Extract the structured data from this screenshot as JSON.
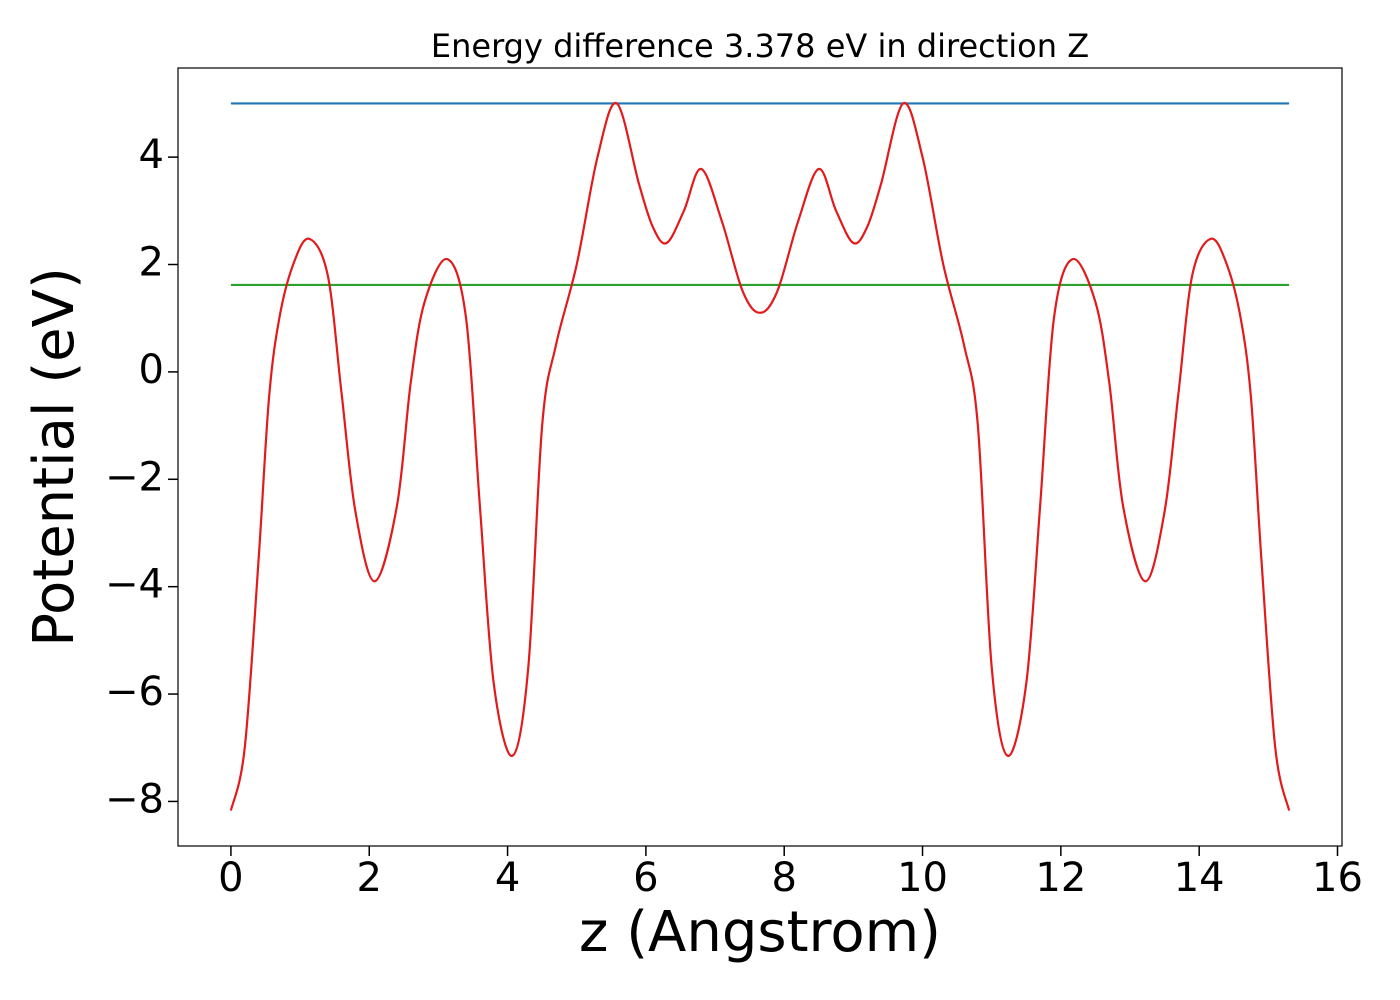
{
  "chart_data": {
    "type": "line",
    "title": "Energy difference 3.378 eV in direction Z",
    "xlabel": "z (Angstrom)",
    "ylabel": "Potential (eV)",
    "xlim": [
      -0.765,
      16.065
    ],
    "ylim": [
      -8.83,
      5.66
    ],
    "xticks": [
      0,
      2,
      4,
      6,
      8,
      10,
      12,
      14,
      16
    ],
    "yticks": [
      {
        "value": -8,
        "label": "−8"
      },
      {
        "value": -6,
        "label": "−6"
      },
      {
        "value": -4,
        "label": "−4"
      },
      {
        "value": -2,
        "label": "−2"
      },
      0,
      2,
      4
    ],
    "series": [
      {
        "color": "#1f77b4",
        "x": [
          0,
          15.3
        ],
        "values": [
          5.0,
          5.0
        ]
      },
      {
        "color": "#2ca02c",
        "x": [
          0,
          15.3
        ],
        "values": [
          1.62,
          1.62
        ]
      },
      {
        "color": "#e31a1c",
        "x": [
          0,
          0.2,
          0.4,
          0.55,
          0.7,
          0.9,
          1.13,
          1.4,
          1.6,
          1.8,
          2.08,
          2.4,
          2.6,
          2.8,
          3.13,
          3.4,
          3.6,
          3.8,
          4.07,
          4.3,
          4.5,
          4.7,
          5.0,
          5.3,
          5.58,
          5.9,
          6.1,
          6.3,
          6.55,
          6.8,
          7.1,
          7.4,
          7.65,
          7.9,
          8.2,
          8.5,
          8.75,
          9.0,
          9.2,
          9.4,
          9.72,
          10.0,
          10.3,
          10.6,
          10.8,
          11.0,
          11.23,
          11.5,
          11.7,
          11.9,
          12.17,
          12.5,
          12.7,
          12.9,
          13.22,
          13.5,
          13.7,
          13.9,
          14.17,
          14.4,
          14.6,
          14.75,
          14.9,
          15.1,
          15.3
        ],
        "values": [
          -8.17,
          -7.0,
          -3.5,
          -0.5,
          1.0,
          2.0,
          2.48,
          1.8,
          -0.4,
          -2.6,
          -3.9,
          -2.5,
          -0.2,
          1.3,
          2.1,
          1.0,
          -2.5,
          -5.8,
          -7.15,
          -5.5,
          -1.0,
          0.5,
          2.0,
          4.0,
          5.0,
          3.5,
          2.7,
          2.4,
          3.0,
          3.78,
          2.8,
          1.5,
          1.1,
          1.5,
          2.8,
          3.78,
          3.0,
          2.4,
          2.7,
          3.5,
          5.0,
          4.0,
          2.0,
          0.5,
          -1.0,
          -5.5,
          -7.15,
          -5.8,
          -2.5,
          1.0,
          2.1,
          1.3,
          -0.2,
          -2.5,
          -3.9,
          -2.6,
          -0.4,
          1.8,
          2.48,
          2.0,
          1.0,
          -0.5,
          -3.5,
          -7.0,
          -8.17
        ]
      }
    ]
  }
}
